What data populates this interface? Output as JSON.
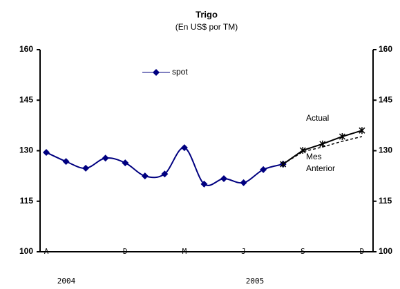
{
  "chart_data": {
    "type": "line",
    "title": "Trigo",
    "subtitle": "(En US$ por TM)",
    "categories": [
      "A",
      null,
      null,
      null,
      "D",
      null,
      null,
      "M",
      null,
      null,
      "J",
      null,
      null,
      "S",
      null,
      null,
      "D"
    ],
    "year_labels": [
      "2004",
      "2005"
    ],
    "series": [
      {
        "name": "spot",
        "color": "#000080",
        "marker": "diamond",
        "legend": true,
        "values": [
          129.5,
          126.8,
          124.8,
          127.8,
          126.4,
          122.5,
          123.1,
          130.9,
          120.1,
          121.7,
          120.5,
          124.4,
          126.0,
          null,
          null,
          null,
          null
        ]
      },
      {
        "name": "Actual",
        "color": "#000000",
        "marker": "star",
        "legend": false,
        "values": [
          null,
          null,
          null,
          null,
          null,
          null,
          null,
          null,
          null,
          null,
          null,
          null,
          126.0,
          130.1,
          132.0,
          134.2,
          136.0
        ]
      },
      {
        "name": "Mes Anterior",
        "color": "#000000",
        "dashed": true,
        "legend": false,
        "values": [
          null,
          null,
          null,
          null,
          null,
          null,
          null,
          null,
          null,
          null,
          null,
          null,
          126.0,
          129.7,
          131.1,
          132.8,
          134.2
        ]
      }
    ],
    "ylim": [
      100,
      160
    ],
    "yticks": [
      100,
      115,
      130,
      145,
      160
    ],
    "y2lim": [
      100,
      160
    ],
    "y2ticks": [
      100,
      115,
      130,
      145,
      160
    ],
    "grid": false
  }
}
